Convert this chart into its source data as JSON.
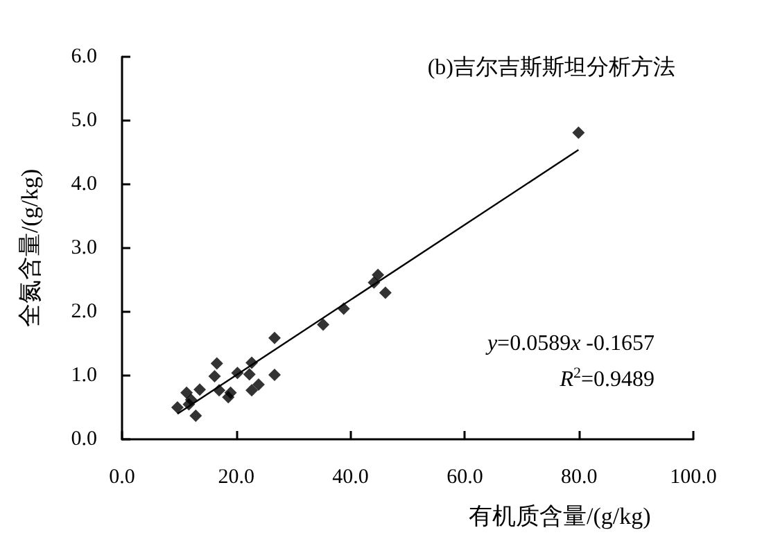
{
  "chart_data": {
    "type": "scatter",
    "title": "(b)吉尔吉斯斯坦分析方法",
    "xlabel": "有机质含量/(g/kg)",
    "ylabel": "全氮含量/(g/kg)",
    "annotations": [
      "y=0.0589x -0.1657",
      "R$^{2}$=0.9489"
    ],
    "series": [
      {
        "color": "#000000",
        "marker": "diamond",
        "x": [
          9.7,
          11.3,
          11.7,
          12.9,
          13.6,
          12.1,
          16.6,
          16.2,
          17.0,
          19.0,
          18.6,
          20.2,
          22.7,
          22.3,
          22.7,
          23.9,
          26.7,
          26.7,
          35.2,
          38.8,
          44.1,
          44.8,
          46.1,
          79.9
        ],
        "values": [
          0.5,
          0.73,
          0.55,
          0.37,
          0.78,
          0.62,
          1.19,
          0.99,
          0.77,
          0.73,
          0.66,
          1.04,
          1.2,
          1.02,
          0.77,
          0.86,
          1.59,
          1.01,
          1.8,
          2.05,
          2.46,
          2.58,
          2.3,
          4.81
        ]
      },
      {
        "type": "line",
        "color": "#000000",
        "marker": "none",
        "line_style": "solid",
        "x": [
          9.7,
          79.9
        ],
        "values": [
          0.4,
          4.54
        ]
      }
    ],
    "xlim": [
      0,
      100
    ],
    "xticks": [
      {
        "value": 0,
        "label": "0.0"
      },
      {
        "value": 20,
        "label": "20.0"
      },
      {
        "value": 40,
        "label": "40.0"
      },
      {
        "value": 60,
        "label": "60.0"
      },
      {
        "value": 80,
        "label": "80.0"
      },
      {
        "value": 100,
        "label": "100.0"
      }
    ],
    "ylim": [
      0,
      6
    ],
    "yticks": [
      {
        "value": 0,
        "label": "0.0"
      },
      {
        "value": 1,
        "label": "1.0"
      },
      {
        "value": 2,
        "label": "2.0"
      },
      {
        "value": 3,
        "label": "3.0"
      },
      {
        "value": 4,
        "label": "4.0"
      },
      {
        "value": 5,
        "label": "5.0"
      },
      {
        "value": 6,
        "label": "6.0"
      }
    ],
    "grid": false
  }
}
